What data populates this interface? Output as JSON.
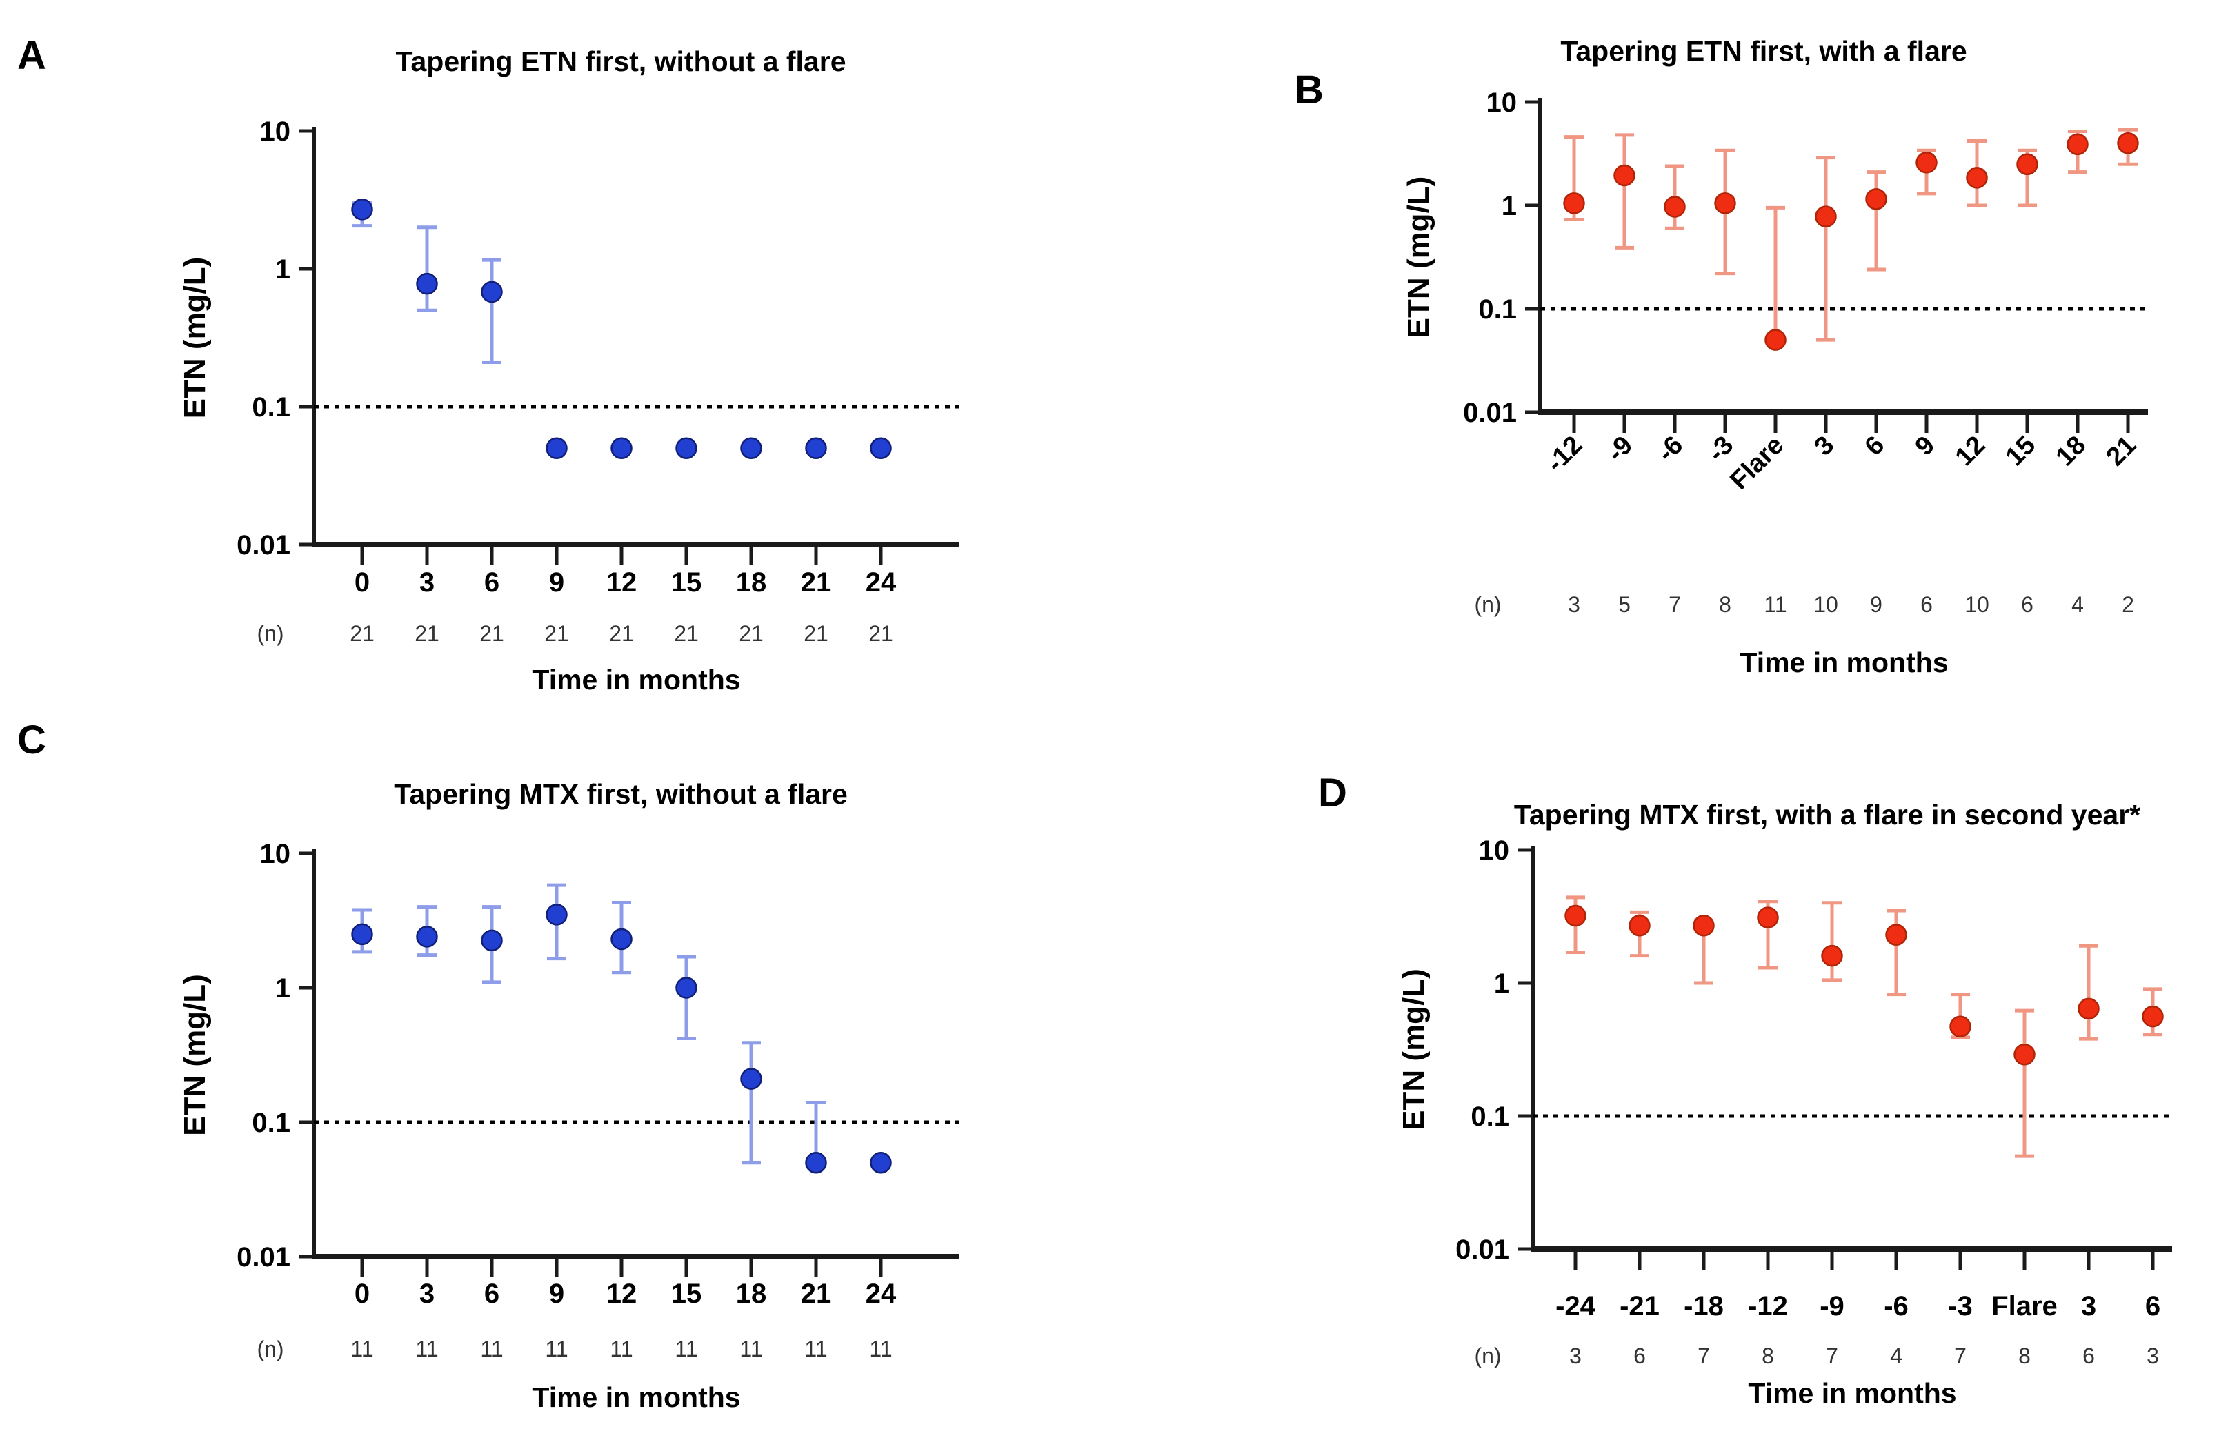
{
  "figure": {
    "description": "Four-panel log-scale scatter figure of serum ETN concentration over time",
    "y_axis_title": "ETN (mg/L)",
    "x_axis_title": "Time in months",
    "n_row_label": "(n)",
    "colors": {
      "blue_point": "#2140d2",
      "blue_point_edge": "#111f78",
      "blue_error": "#8d9de9",
      "red_point": "#ee2d12",
      "red_point_edge": "#b02408",
      "red_error": "#f09784",
      "axis": "#1a1a1a",
      "text": "#000000",
      "n_text": "#333333"
    }
  },
  "chart_data": [
    {
      "panel_label": "A",
      "type": "scatter",
      "title": "Tapering ETN first, without a flare",
      "ylabel": "ETN (mg/L)",
      "xlabel": "Time in months",
      "n_label": "(n)",
      "yscale": "log",
      "ylim": [
        0.01,
        10
      ],
      "yticks": [
        "0.01",
        "0.1",
        "1",
        "10"
      ],
      "threshold_line": 0.1,
      "grid": false,
      "legend": "none",
      "series_color": "#2140d2",
      "error_color": "#8d9de9",
      "x_tick_rotation": 0,
      "categories": [
        "0",
        "3",
        "6",
        "9",
        "12",
        "15",
        "18",
        "21",
        "24"
      ],
      "n": [
        21,
        21,
        21,
        21,
        21,
        21,
        21,
        21,
        21
      ],
      "points": [
        {
          "y": 2.7,
          "lo": 2.05,
          "hi": 3.0
        },
        {
          "y": 0.78,
          "lo": 0.5,
          "hi": 2.0
        },
        {
          "y": 0.68,
          "lo": 0.21,
          "hi": 1.16
        },
        {
          "y": 0.05,
          "lo": null,
          "hi": null
        },
        {
          "y": 0.05,
          "lo": null,
          "hi": null
        },
        {
          "y": 0.05,
          "lo": null,
          "hi": null
        },
        {
          "y": 0.05,
          "lo": null,
          "hi": null
        },
        {
          "y": 0.05,
          "lo": null,
          "hi": null
        },
        {
          "y": 0.05,
          "lo": null,
          "hi": null
        }
      ]
    },
    {
      "panel_label": "B",
      "type": "scatter",
      "title": "Tapering ETN first, with a flare",
      "ylabel": "ETN (mg/L)",
      "xlabel": "Time in months",
      "n_label": "(n)",
      "yscale": "log",
      "ylim": [
        0.01,
        10
      ],
      "yticks": [
        "0.01",
        "0.1",
        "1",
        "10"
      ],
      "threshold_line": 0.1,
      "grid": false,
      "legend": "none",
      "series_color": "#ee2d12",
      "error_color": "#f09784",
      "x_tick_rotation": -45,
      "categories": [
        "-12",
        "-9",
        "-6",
        "-3",
        "Flare",
        "3",
        "6",
        "9",
        "12",
        "15",
        "18",
        "21"
      ],
      "n": [
        3,
        5,
        7,
        8,
        11,
        10,
        9,
        6,
        10,
        6,
        4,
        2
      ],
      "points": [
        {
          "y": 1.05,
          "lo": 0.73,
          "hi": 4.6
        },
        {
          "y": 1.95,
          "lo": 0.39,
          "hi": 4.8
        },
        {
          "y": 0.97,
          "lo": 0.6,
          "hi": 2.4
        },
        {
          "y": 1.05,
          "lo": 0.22,
          "hi": 3.4
        },
        {
          "y": 0.05,
          "lo": 0.05,
          "hi": 0.95
        },
        {
          "y": 0.78,
          "lo": 0.05,
          "hi": 2.9
        },
        {
          "y": 1.15,
          "lo": 0.24,
          "hi": 2.1
        },
        {
          "y": 2.6,
          "lo": 1.3,
          "hi": 3.4
        },
        {
          "y": 1.85,
          "lo": 1.0,
          "hi": 4.2
        },
        {
          "y": 2.5,
          "lo": 1.0,
          "hi": 3.4
        },
        {
          "y": 3.9,
          "lo": 2.1,
          "hi": 5.2
        },
        {
          "y": 4.0,
          "lo": 2.5,
          "hi": 5.4
        }
      ]
    },
    {
      "panel_label": "C",
      "type": "scatter",
      "title": "Tapering MTX first, without a flare",
      "ylabel": "ETN (mg/L)",
      "xlabel": "Time in months",
      "n_label": "(n)",
      "yscale": "log",
      "ylim": [
        0.01,
        10
      ],
      "yticks": [
        "0.01",
        "0.1",
        "1",
        "10"
      ],
      "threshold_line": 0.1,
      "grid": false,
      "legend": "none",
      "series_color": "#2140d2",
      "error_color": "#8d9de9",
      "x_tick_rotation": 0,
      "categories": [
        "0",
        "3",
        "6",
        "9",
        "12",
        "15",
        "18",
        "21",
        "24"
      ],
      "n": [
        11,
        11,
        11,
        11,
        11,
        11,
        11,
        11,
        11
      ],
      "points": [
        {
          "y": 2.5,
          "lo": 1.85,
          "hi": 3.8
        },
        {
          "y": 2.4,
          "lo": 1.75,
          "hi": 4.0
        },
        {
          "y": 2.25,
          "lo": 1.1,
          "hi": 4.0
        },
        {
          "y": 3.5,
          "lo": 1.65,
          "hi": 5.8
        },
        {
          "y": 2.3,
          "lo": 1.3,
          "hi": 4.3
        },
        {
          "y": 1.0,
          "lo": 0.42,
          "hi": 1.7
        },
        {
          "y": 0.21,
          "lo": 0.05,
          "hi": 0.39
        },
        {
          "y": 0.05,
          "lo": 0.05,
          "hi": 0.14
        },
        {
          "y": 0.05,
          "lo": null,
          "hi": null
        }
      ]
    },
    {
      "panel_label": "D",
      "type": "scatter",
      "title": "Tapering MTX first, with a flare in second year*",
      "ylabel": "ETN (mg/L)",
      "xlabel": "Time in months",
      "n_label": "(n)",
      "yscale": "log",
      "ylim": [
        0.01,
        10
      ],
      "yticks": [
        "0.01",
        "0.1",
        "1",
        "10"
      ],
      "threshold_line": 0.1,
      "grid": false,
      "legend": "none",
      "series_color": "#ee2d12",
      "error_color": "#f09784",
      "x_tick_rotation": 0,
      "categories": [
        "-24",
        "-21",
        "-18",
        "-12",
        "-9",
        "-6",
        "-3",
        "Flare",
        "3",
        "6"
      ],
      "n": [
        3,
        6,
        7,
        8,
        7,
        4,
        7,
        8,
        6,
        3
      ],
      "points": [
        {
          "y": 3.2,
          "lo": 1.7,
          "hi": 4.4
        },
        {
          "y": 2.7,
          "lo": 1.6,
          "hi": 3.4
        },
        {
          "y": 2.7,
          "lo": 1.0,
          "hi": 2.95
        },
        {
          "y": 3.1,
          "lo": 1.3,
          "hi": 4.1
        },
        {
          "y": 1.6,
          "lo": 1.05,
          "hi": 4.0
        },
        {
          "y": 2.3,
          "lo": 0.82,
          "hi": 3.5
        },
        {
          "y": 0.47,
          "lo": 0.39,
          "hi": 0.82
        },
        {
          "y": 0.29,
          "lo": 0.05,
          "hi": 0.62
        },
        {
          "y": 0.64,
          "lo": 0.38,
          "hi": 1.9
        },
        {
          "y": 0.56,
          "lo": 0.41,
          "hi": 0.9
        }
      ]
    }
  ]
}
